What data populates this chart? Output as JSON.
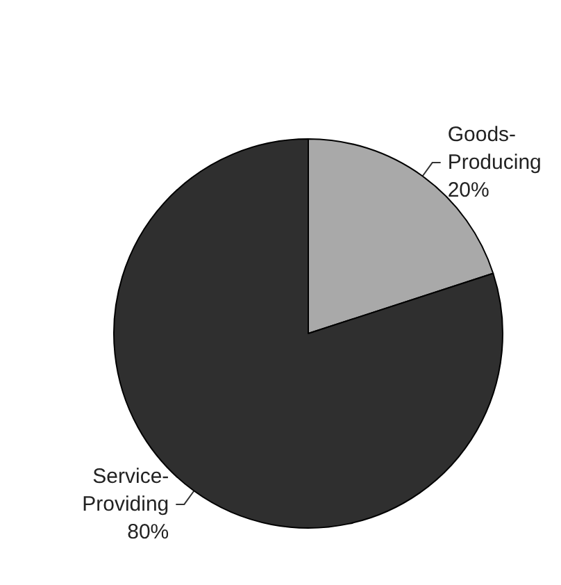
{
  "chart_data": {
    "type": "pie",
    "categories": [
      "Goods-Producing",
      "Service-Providing"
    ],
    "values": [
      20,
      80
    ],
    "colors": [
      "#a9a9a9",
      "#2f2f2f"
    ],
    "value_labels": [
      "20%",
      "80%"
    ],
    "legend": false
  }
}
